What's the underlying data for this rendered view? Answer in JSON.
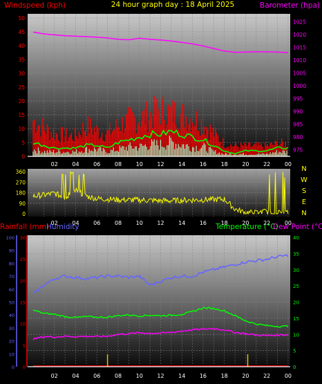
{
  "header": {
    "left_label": "Windspeed (kph)",
    "title": "24 hour graph day : 18 April 2025",
    "right_label": "Barometer (hpa)"
  },
  "colors": {
    "red": "#ff0000",
    "magenta": "#ff00ff",
    "yellow": "#ffff00",
    "green": "#00ff00",
    "white": "#ffffff",
    "blue": "#6666ff",
    "light_green": "#ccffcc",
    "dark_red": "#cc0000"
  },
  "time_ticks": [
    "02",
    "04",
    "06",
    "08",
    "10",
    "12",
    "14",
    "16",
    "18",
    "20",
    "22",
    "00"
  ],
  "chart_data": [
    {
      "id": "wind_baro",
      "type": "line",
      "title": "24 hour graph day : 18 April 2025",
      "ylabel_left": "Windspeed (kph)",
      "ylabel_right": "Barometer (hpa)",
      "y_left_ticks": [
        0,
        5,
        10,
        15,
        20,
        25,
        30,
        35,
        40,
        45,
        50
      ],
      "y_right_ticks": [
        975,
        980,
        985,
        990,
        995,
        1000,
        1005,
        1010,
        1015,
        1020,
        1025
      ],
      "ylim_left": [
        0,
        50
      ],
      "ylim_right": [
        972.5,
        1026.5
      ],
      "x": [
        0,
        1,
        2,
        3,
        4,
        5,
        6,
        7,
        8,
        9,
        10,
        11,
        12,
        13,
        14,
        15,
        16,
        17,
        18,
        19,
        20,
        21,
        22,
        23,
        24
      ],
      "series": [
        {
          "role": "gust",
          "color": "#ff0000",
          "values": [
            14,
            11,
            9,
            8,
            8,
            12,
            10,
            9,
            12,
            14,
            15,
            16,
            18,
            17,
            16,
            15,
            13,
            9,
            5,
            4,
            4,
            4,
            4,
            5,
            5
          ]
        },
        {
          "role": "average",
          "color": "#00ff00",
          "values": [
            5,
            4,
            3,
            3,
            3,
            4,
            4,
            3,
            5,
            6,
            7,
            8,
            8,
            9,
            8,
            7,
            6,
            4,
            2,
            1,
            2,
            2,
            2,
            3,
            3
          ]
        },
        {
          "role": "lull",
          "color": "#ffffff",
          "values": [
            3,
            2,
            2,
            2,
            2,
            3,
            3,
            2,
            3,
            4,
            4,
            5,
            5,
            6,
            5,
            4,
            4,
            2,
            1,
            1,
            1,
            1,
            1,
            2,
            2
          ]
        },
        {
          "role": "barometer",
          "color": "#ff00ff",
          "values": [
            1021.0,
            1020.3,
            1019.9,
            1019.6,
            1019.4,
            1019.2,
            1019.0,
            1018.7,
            1018.2,
            1018.0,
            1018.6,
            1018.2,
            1017.9,
            1017.5,
            1017.0,
            1016.4,
            1015.6,
            1014.6,
            1013.6,
            1013.1,
            1013.2,
            1013.3,
            1013.3,
            1013.2,
            1013.0
          ]
        }
      ]
    },
    {
      "id": "wind_direction",
      "type": "scatter",
      "y_ticks": [
        0,
        90,
        180,
        270,
        360
      ],
      "compass": [
        "N",
        "W",
        "S",
        "E",
        "N"
      ],
      "ylim": [
        0,
        360
      ],
      "x": [
        0,
        1,
        2,
        3,
        4,
        5,
        6,
        7,
        8,
        9,
        10,
        11,
        12,
        13,
        14,
        15,
        16,
        17,
        18,
        19,
        20,
        21,
        22,
        23,
        24
      ],
      "values": [
        150,
        160,
        175,
        140,
        200,
        150,
        130,
        125,
        120,
        118,
        118,
        115,
        112,
        112,
        115,
        118,
        120,
        122,
        125,
        40,
        10,
        10,
        20,
        10,
        10
      ]
    },
    {
      "id": "rain_hum_temp",
      "type": "line",
      "ylabel_left_rain": "Rainfall (mm)",
      "ylabel_left_hum": "Humidity",
      "ylabel_right_temp": "Temperature (°C)",
      "ylabel_right_dew": "Dew Point (°C)",
      "y_hum_ticks": [
        0,
        10,
        20,
        30,
        40,
        50,
        60,
        70,
        80,
        90,
        100
      ],
      "y_rain_ticks": [
        0,
        5,
        10,
        15,
        20,
        25,
        30
      ],
      "y_temp_ticks": [
        0,
        5,
        10,
        15,
        20,
        25,
        30,
        35,
        40
      ],
      "ylim_hum": [
        0,
        100
      ],
      "ylim_rain": [
        0,
        30
      ],
      "ylim_temp": [
        0,
        40
      ],
      "x": [
        0,
        1,
        2,
        3,
        4,
        5,
        6,
        7,
        8,
        9,
        10,
        11,
        12,
        13,
        14,
        15,
        16,
        17,
        18,
        19,
        20,
        21,
        22,
        23,
        24
      ],
      "series": [
        {
          "role": "humidity",
          "color": "#6666ff",
          "values": [
            56,
            63,
            68,
            70,
            69,
            68,
            69,
            70,
            70,
            69,
            70,
            63,
            66,
            69,
            70,
            70,
            73,
            75,
            77,
            79,
            81,
            82,
            83,
            85,
            86
          ]
        },
        {
          "role": "temperature",
          "color": "#00ff00",
          "values": [
            17.5,
            16.5,
            16.2,
            15.5,
            15.2,
            15.5,
            15.3,
            15.3,
            15.8,
            16.0,
            15.7,
            15.9,
            15.8,
            15.9,
            16.2,
            17.0,
            18.2,
            18.0,
            17.3,
            15.8,
            14.2,
            13.2,
            12.7,
            12.5,
            12.5
          ]
        },
        {
          "role": "dewpoint",
          "color": "#ff00ff",
          "values": [
            8.5,
            9.3,
            9.2,
            9.4,
            9.3,
            9.4,
            9.3,
            9.4,
            10.0,
            10.2,
            10.5,
            10.3,
            10.4,
            10.6,
            11.0,
            11.4,
            11.6,
            11.8,
            11.4,
            10.6,
            10.2,
            9.8,
            9.6,
            9.8,
            9.9
          ]
        },
        {
          "role": "rainfall",
          "color": "#cc0000",
          "values": [
            0,
            0,
            0,
            0,
            0,
            0,
            0,
            0,
            0,
            0,
            0,
            0,
            0,
            0,
            0,
            0,
            0,
            0,
            0,
            0,
            0,
            0,
            0,
            0,
            0
          ]
        }
      ],
      "rain_rate_marks_x": [
        7.0,
        20.2
      ]
    }
  ]
}
